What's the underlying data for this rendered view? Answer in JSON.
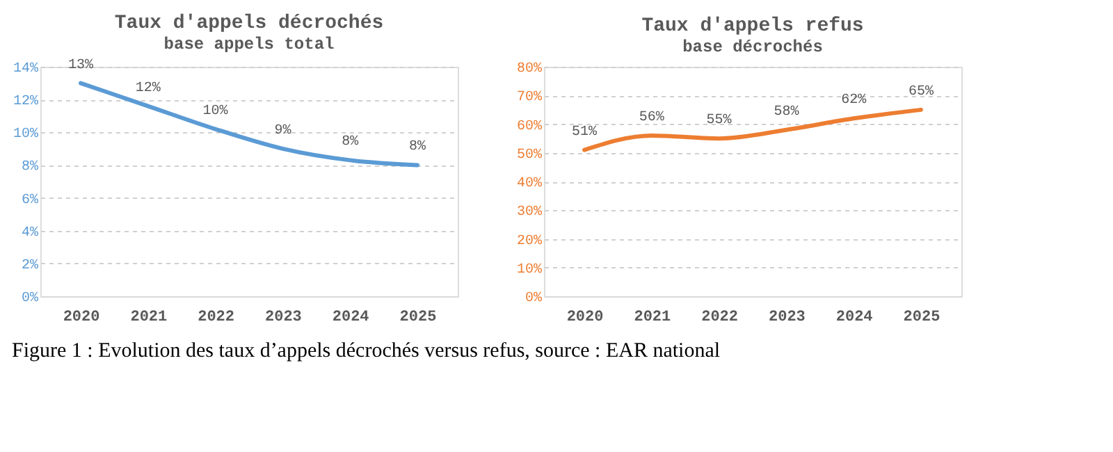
{
  "chart_data": [
    {
      "type": "line",
      "title": "Taux d'appels décrochés",
      "subtitle": "base appels total",
      "categories": [
        "2020",
        "2021",
        "2022",
        "2023",
        "2024",
        "2025"
      ],
      "series": [
        {
          "color": "#5b9bd5",
          "values": [
            13,
            11.6,
            10.2,
            9.0,
            8.3,
            8.0
          ],
          "value_labels": [
            "13%",
            "12%",
            "10%",
            "9%",
            "8%",
            "8%"
          ]
        }
      ],
      "ylim": [
        0,
        14
      ],
      "yticks": [
        {
          "value": 0,
          "label": "0%"
        },
        {
          "value": 2,
          "label": "2%"
        },
        {
          "value": 4,
          "label": "4%"
        },
        {
          "value": 6,
          "label": "6%"
        },
        {
          "value": 8,
          "label": "8%"
        },
        {
          "value": 10,
          "label": "10%"
        },
        {
          "value": 12,
          "label": "12%"
        },
        {
          "value": 14,
          "label": "14%"
        }
      ],
      "grid": "y",
      "marker": "none",
      "line_style": "solid",
      "annotations": [
        "Figure 1 : Evolution des taux d’appels décrochés versus refus, source : EAR national"
      ]
    },
    {
      "type": "line",
      "title": "Taux d'appels refus",
      "subtitle": "base décrochés",
      "categories": [
        "2020",
        "2021",
        "2022",
        "2023",
        "2024",
        "2025"
      ],
      "series": [
        {
          "color": "#ed7d31",
          "values": [
            51,
            56,
            55,
            58,
            62,
            65
          ],
          "value_labels": [
            "51%",
            "56%",
            "55%",
            "58%",
            "62%",
            "65%"
          ]
        }
      ],
      "ylim": [
        0,
        80
      ],
      "yticks": [
        {
          "value": 0,
          "label": "0%"
        },
        {
          "value": 10,
          "label": "10%"
        },
        {
          "value": 20,
          "label": "20%"
        },
        {
          "value": 30,
          "label": "30%"
        },
        {
          "value": 40,
          "label": "40%"
        },
        {
          "value": 50,
          "label": "50%"
        },
        {
          "value": 60,
          "label": "60%"
        },
        {
          "value": 70,
          "label": "70%"
        },
        {
          "value": 80,
          "label": "80%"
        }
      ],
      "grid": "y",
      "marker": "none",
      "line_style": "solid"
    }
  ]
}
